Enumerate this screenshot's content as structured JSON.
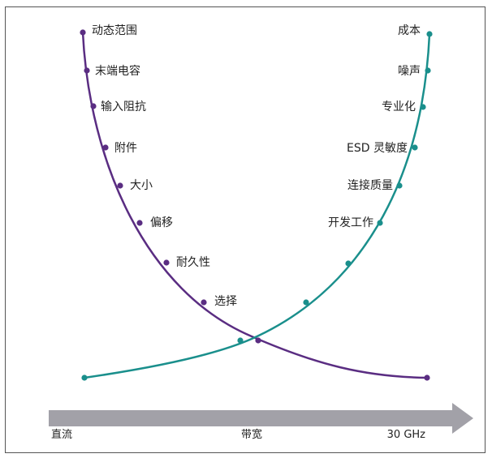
{
  "colors": {
    "left_curve": "#5a2d82",
    "right_curve": "#1a8f8c",
    "arrow": "#a2a1a8",
    "frame": "#555555",
    "text": "#222222"
  },
  "left_curve": {
    "labels": [
      "动态范围",
      "末端电容",
      "输入阻抗",
      "附件",
      "大小",
      "偏移",
      "耐久性",
      "选择"
    ]
  },
  "right_curve": {
    "labels": [
      "成本",
      "噪声",
      "专业化",
      "ESD 灵敏度",
      "连接质量",
      "开发工作"
    ]
  },
  "axis": {
    "left_label": "直流",
    "center_label": "带宽",
    "right_label": "30 GHz"
  }
}
